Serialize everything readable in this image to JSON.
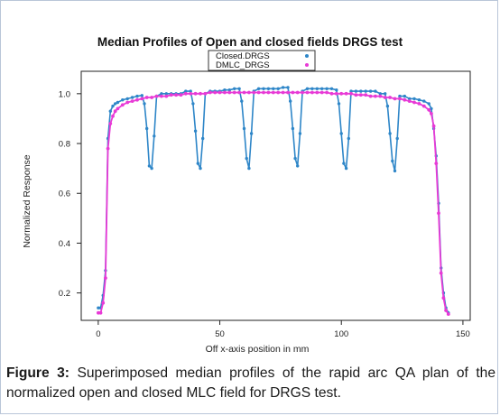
{
  "chart_data": {
    "type": "line",
    "title": "Median Profiles of Open and closed fields DRGS test",
    "xlabel": "Off x-axis position in mm",
    "ylabel": "Normalized Response",
    "xlim": [
      -7,
      153
    ],
    "ylim": [
      0.09,
      1.09
    ],
    "x_ticks": [
      0,
      50,
      100,
      150
    ],
    "x_tick_labels": [
      "0",
      "50",
      "100",
      "150"
    ],
    "y_ticks": [
      0.2,
      0.4,
      0.6,
      0.8,
      1.0
    ],
    "y_tick_labels": [
      "0.2",
      "0.4",
      "0.6",
      "0.8",
      "1.0"
    ],
    "grid": false,
    "legend_position": "top-center",
    "series": [
      {
        "name": "Closed.DRGS",
        "color": "#2e86c8",
        "points": [
          [
            0,
            0.14
          ],
          [
            1,
            0.14
          ],
          [
            2,
            0.19
          ],
          [
            3,
            0.29
          ],
          [
            4,
            0.82
          ],
          [
            5,
            0.93
          ],
          [
            6,
            0.95
          ],
          [
            7,
            0.96
          ],
          [
            8,
            0.965
          ],
          [
            10,
            0.975
          ],
          [
            12,
            0.98
          ],
          [
            14,
            0.985
          ],
          [
            16,
            0.99
          ],
          [
            18,
            0.993
          ],
          [
            19,
            0.96
          ],
          [
            20,
            0.86
          ],
          [
            21,
            0.71
          ],
          [
            22,
            0.7
          ],
          [
            23,
            0.83
          ],
          [
            24,
            0.99
          ],
          [
            26,
            1.0
          ],
          [
            28,
            1.0
          ],
          [
            30,
            1.0
          ],
          [
            32,
            1.0
          ],
          [
            34,
            1.0
          ],
          [
            36,
            1.01
          ],
          [
            38,
            1.01
          ],
          [
            39,
            0.96
          ],
          [
            40,
            0.85
          ],
          [
            41,
            0.72
          ],
          [
            42,
            0.7
          ],
          [
            43,
            0.82
          ],
          [
            44,
            1.0
          ],
          [
            46,
            1.01
          ],
          [
            48,
            1.01
          ],
          [
            50,
            1.01
          ],
          [
            52,
            1.015
          ],
          [
            54,
            1.015
          ],
          [
            56,
            1.02
          ],
          [
            58,
            1.02
          ],
          [
            59,
            0.97
          ],
          [
            60,
            0.86
          ],
          [
            61,
            0.74
          ],
          [
            62,
            0.7
          ],
          [
            63,
            0.84
          ],
          [
            64,
            1.01
          ],
          [
            66,
            1.02
          ],
          [
            68,
            1.02
          ],
          [
            70,
            1.02
          ],
          [
            72,
            1.02
          ],
          [
            74,
            1.02
          ],
          [
            76,
            1.025
          ],
          [
            78,
            1.025
          ],
          [
            79,
            0.97
          ],
          [
            80,
            0.86
          ],
          [
            81,
            0.74
          ],
          [
            82,
            0.71
          ],
          [
            83,
            0.84
          ],
          [
            84,
            1.01
          ],
          [
            86,
            1.02
          ],
          [
            88,
            1.02
          ],
          [
            90,
            1.02
          ],
          [
            92,
            1.02
          ],
          [
            94,
            1.02
          ],
          [
            96,
            1.02
          ],
          [
            98,
            1.015
          ],
          [
            99,
            0.96
          ],
          [
            100,
            0.84
          ],
          [
            101,
            0.72
          ],
          [
            102,
            0.7
          ],
          [
            103,
            0.82
          ],
          [
            104,
            1.01
          ],
          [
            106,
            1.01
          ],
          [
            108,
            1.01
          ],
          [
            110,
            1.01
          ],
          [
            112,
            1.01
          ],
          [
            114,
            1.01
          ],
          [
            116,
            1.0
          ],
          [
            118,
            1.0
          ],
          [
            119,
            0.95
          ],
          [
            120,
            0.84
          ],
          [
            121,
            0.73
          ],
          [
            122,
            0.69
          ],
          [
            123,
            0.82
          ],
          [
            124,
            0.99
          ],
          [
            126,
            0.99
          ],
          [
            128,
            0.98
          ],
          [
            130,
            0.98
          ],
          [
            132,
            0.975
          ],
          [
            134,
            0.97
          ],
          [
            136,
            0.96
          ],
          [
            137,
            0.94
          ],
          [
            138,
            0.86
          ],
          [
            139,
            0.75
          ],
          [
            140,
            0.56
          ],
          [
            141,
            0.3
          ],
          [
            142,
            0.2
          ],
          [
            143,
            0.14
          ],
          [
            144,
            0.12
          ]
        ]
      },
      {
        "name": "DMLC_DRGS",
        "color": "#e83ad6",
        "points": [
          [
            0,
            0.12
          ],
          [
            1,
            0.12
          ],
          [
            2,
            0.16
          ],
          [
            3,
            0.26
          ],
          [
            4,
            0.78
          ],
          [
            5,
            0.88
          ],
          [
            6,
            0.91
          ],
          [
            7,
            0.93
          ],
          [
            8,
            0.94
          ],
          [
            10,
            0.955
          ],
          [
            12,
            0.965
          ],
          [
            14,
            0.97
          ],
          [
            16,
            0.975
          ],
          [
            18,
            0.98
          ],
          [
            20,
            0.985
          ],
          [
            22,
            0.985
          ],
          [
            24,
            0.99
          ],
          [
            26,
            0.99
          ],
          [
            28,
            0.99
          ],
          [
            30,
            0.995
          ],
          [
            32,
            0.995
          ],
          [
            34,
            0.995
          ],
          [
            36,
            1.0
          ],
          [
            38,
            1.0
          ],
          [
            40,
            1.0
          ],
          [
            42,
            1.0
          ],
          [
            44,
            1.0
          ],
          [
            46,
            1.005
          ],
          [
            48,
            1.005
          ],
          [
            50,
            1.005
          ],
          [
            52,
            1.005
          ],
          [
            54,
            1.005
          ],
          [
            56,
            1.005
          ],
          [
            58,
            1.005
          ],
          [
            60,
            1.005
          ],
          [
            62,
            1.005
          ],
          [
            64,
            1.005
          ],
          [
            66,
            1.005
          ],
          [
            68,
            1.005
          ],
          [
            70,
            1.005
          ],
          [
            72,
            1.005
          ],
          [
            74,
            1.005
          ],
          [
            76,
            1.005
          ],
          [
            78,
            1.005
          ],
          [
            80,
            1.005
          ],
          [
            82,
            1.005
          ],
          [
            84,
            1.005
          ],
          [
            86,
            1.005
          ],
          [
            88,
            1.005
          ],
          [
            90,
            1.005
          ],
          [
            92,
            1.005
          ],
          [
            94,
            1.005
          ],
          [
            96,
            1.0
          ],
          [
            98,
            1.0
          ],
          [
            100,
            1.0
          ],
          [
            102,
            1.0
          ],
          [
            104,
            1.0
          ],
          [
            106,
            0.995
          ],
          [
            108,
            0.995
          ],
          [
            110,
            0.995
          ],
          [
            112,
            0.99
          ],
          [
            114,
            0.99
          ],
          [
            116,
            0.99
          ],
          [
            118,
            0.985
          ],
          [
            120,
            0.985
          ],
          [
            122,
            0.98
          ],
          [
            124,
            0.98
          ],
          [
            126,
            0.975
          ],
          [
            128,
            0.97
          ],
          [
            130,
            0.965
          ],
          [
            132,
            0.96
          ],
          [
            134,
            0.95
          ],
          [
            136,
            0.935
          ],
          [
            137,
            0.92
          ],
          [
            138,
            0.87
          ],
          [
            139,
            0.72
          ],
          [
            140,
            0.52
          ],
          [
            141,
            0.28
          ],
          [
            142,
            0.18
          ],
          [
            143,
            0.13
          ],
          [
            144,
            0.115
          ]
        ]
      }
    ]
  },
  "caption": {
    "label": "Figure 3:",
    "text": " Superimposed median profiles of the rapid arc QA plan of the normalized open and closed MLC field for DRGS test."
  }
}
